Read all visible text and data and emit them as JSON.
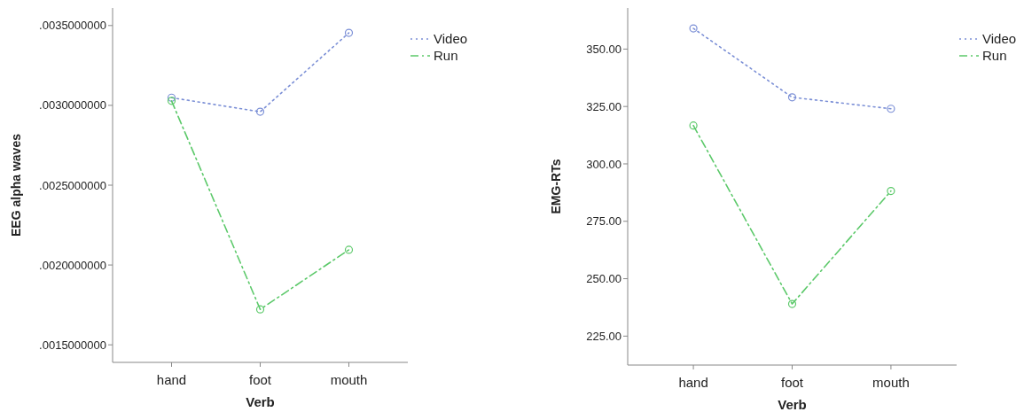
{
  "chart_data": [
    {
      "type": "line",
      "xlabel": "Verb",
      "ylabel": "EEG alpha waves",
      "categories": [
        "hand",
        "foot",
        "mouth"
      ],
      "ylim": [
        0.00139,
        0.00361
      ],
      "yticks": [
        {
          "value": 0.0015,
          "label": ".0015000000"
        },
        {
          "value": 0.002,
          "label": ".0020000000"
        },
        {
          "value": 0.0025,
          "label": ".0025000000"
        },
        {
          "value": 0.003,
          "label": ".0030000000"
        },
        {
          "value": 0.0035,
          "label": ".0035000000"
        }
      ],
      "marker": "circle",
      "legend": "top right",
      "grid": false,
      "series": [
        {
          "name": "Video",
          "color": "#7b8fd6",
          "line_style": "dotted",
          "values": [
            0.003048,
            0.00296,
            0.003454
          ]
        },
        {
          "name": "Run",
          "color": "#5cc96a",
          "line_style": "dashed",
          "values": [
            0.003028,
            0.001722,
            0.002095
          ]
        }
      ]
    },
    {
      "type": "line",
      "xlabel": "Verb",
      "ylabel": "EMG-RTs",
      "categories": [
        "hand",
        "foot",
        "mouth"
      ],
      "ylim": [
        212.4,
        367.9
      ],
      "yticks": [
        {
          "value": 225,
          "label": "225.00"
        },
        {
          "value": 250,
          "label": "250.00"
        },
        {
          "value": 275,
          "label": "275.00"
        },
        {
          "value": 300,
          "label": "300.00"
        },
        {
          "value": 325,
          "label": "325.00"
        },
        {
          "value": 350,
          "label": "350.00"
        }
      ],
      "marker": "circle",
      "legend": "top right",
      "grid": false,
      "series": [
        {
          "name": "Video",
          "color": "#7b8fd6",
          "line_style": "dotted",
          "values": [
            359.0,
            329.0,
            324.0
          ]
        },
        {
          "name": "Run",
          "color": "#5cc96a",
          "line_style": "dashed",
          "values": [
            316.7,
            239.0,
            288.2
          ]
        }
      ]
    }
  ]
}
